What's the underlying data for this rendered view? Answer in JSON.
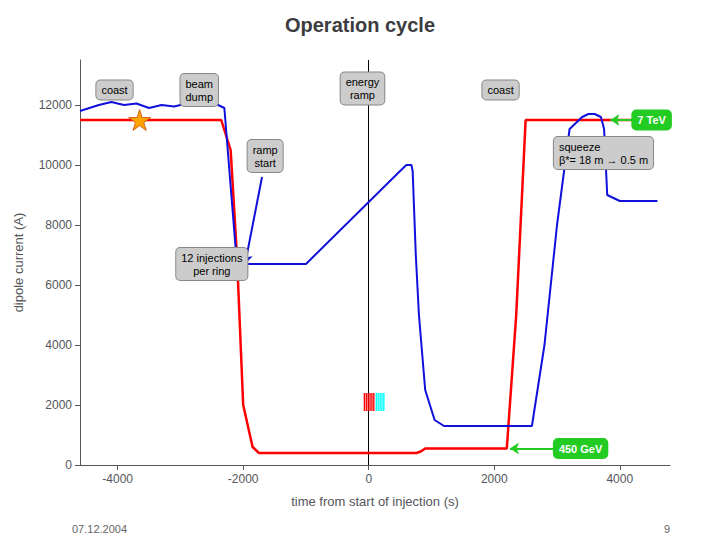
{
  "chart_data": {
    "type": "line",
    "title": "Operation cycle",
    "xlabel": "time from start of injection (s)",
    "ylabel": "dipole current (A)",
    "xlim": [
      -4600,
      4800
    ],
    "ylim": [
      0,
      13500
    ],
    "xticks": [
      -4000,
      -2000,
      0,
      2000,
      4000
    ],
    "yticks": [
      0,
      2000,
      4000,
      6000,
      8000,
      10000,
      12000
    ],
    "grid": false,
    "series": [
      {
        "color": "red",
        "x": [
          -4600,
          -3800,
          -2500,
          -2350,
          -2200,
          -2100,
          -2000,
          -1850,
          -1750,
          -1700,
          700,
          760,
          830,
          900,
          1100,
          2200,
          2350,
          2500,
          3800,
          4600
        ],
        "values": [
          11500,
          11500,
          11500,
          11500,
          10500,
          7000,
          2000,
          600,
          400,
          400,
          400,
          400,
          450,
          550,
          550,
          550,
          5000,
          11500,
          11500,
          11500
        ]
      },
      {
        "color": "#1010DD",
        "x": [
          -4600,
          -4300,
          -4100,
          -3900,
          -3700,
          -3500,
          -3300,
          -3100,
          -2900,
          -2700,
          -2500,
          -2400,
          -2300,
          -2100,
          -1900,
          -1700,
          -1500,
          -1000,
          500,
          600,
          680,
          700,
          750,
          800,
          900,
          1050,
          1200,
          1900,
          2100,
          2200,
          2400,
          2600,
          2800,
          3000,
          3200,
          3400,
          3500,
          3600,
          3700,
          3750,
          3800,
          4000,
          4600
        ],
        "values": [
          11800,
          12000,
          12100,
          12000,
          12050,
          11900,
          12000,
          11950,
          12050,
          12000,
          12050,
          12000,
          11900,
          6700,
          6700,
          6700,
          6700,
          6700,
          9800,
          10000,
          10000,
          9800,
          7000,
          5000,
          2500,
          1500,
          1300,
          1300,
          1300,
          1300,
          1300,
          1300,
          4000,
          8000,
          11200,
          11600,
          11700,
          11700,
          11600,
          11200,
          9000,
          8800,
          8800
        ]
      }
    ],
    "injections": [
      {
        "color": "red",
        "x": [
          -80,
          -50,
          -20,
          10,
          40,
          70
        ]
      },
      {
        "color": "cyan",
        "x": [
          110,
          140,
          170,
          200,
          230
        ]
      }
    ],
    "injection_y": 1800,
    "injection_width": 22,
    "injection_height": 600,
    "annotations": [
      {
        "text": "coast",
        "x": -4050,
        "y": 12500
      },
      {
        "text": "beam\ndump",
        "x": -2700,
        "y": 12500
      },
      {
        "text": "energy\nramp",
        "x": -100,
        "y": 12550
      },
      {
        "text": "coast",
        "x": 2100,
        "y": 12500
      },
      {
        "text": "7 TeV",
        "x": 4200,
        "y": 11500,
        "align": "left",
        "color": "#22CC22"
      },
      {
        "text": "ramp\nstart",
        "x": -1650,
        "y": 10300
      },
      {
        "text": "squeeze\nβ*= 18 m → 0.5 m",
        "x": 2950,
        "y": 10400,
        "align": "left"
      },
      {
        "text": "12 injections\nper ring",
        "x": -2500,
        "y": 6700
      },
      {
        "text": "450 GeV",
        "x": 2950,
        "y": 550,
        "align": "left",
        "color": "#22CC22"
      }
    ],
    "arrows": [
      {
        "color": "#22CC22",
        "from": [
          4190,
          11500
        ],
        "to": [
          3850,
          11500
        ]
      },
      {
        "color": "#1010DD",
        "from": [
          -1700,
          9600
        ],
        "to": [
          -1970,
          6700
        ]
      },
      {
        "color": "#1010DD",
        "from": [
          -2200,
          6700
        ],
        "to": [
          -2050,
          6700
        ]
      },
      {
        "color": "#22CC22",
        "from": [
          2940,
          550
        ],
        "to": [
          2250,
          550
        ]
      }
    ],
    "markers": [
      {
        "x": -3650,
        "y": 11500,
        "marker": "star",
        "color": "orange"
      }
    ],
    "vlines": [
      0
    ],
    "footer": [
      "07.12.2004",
      "9"
    ]
  }
}
